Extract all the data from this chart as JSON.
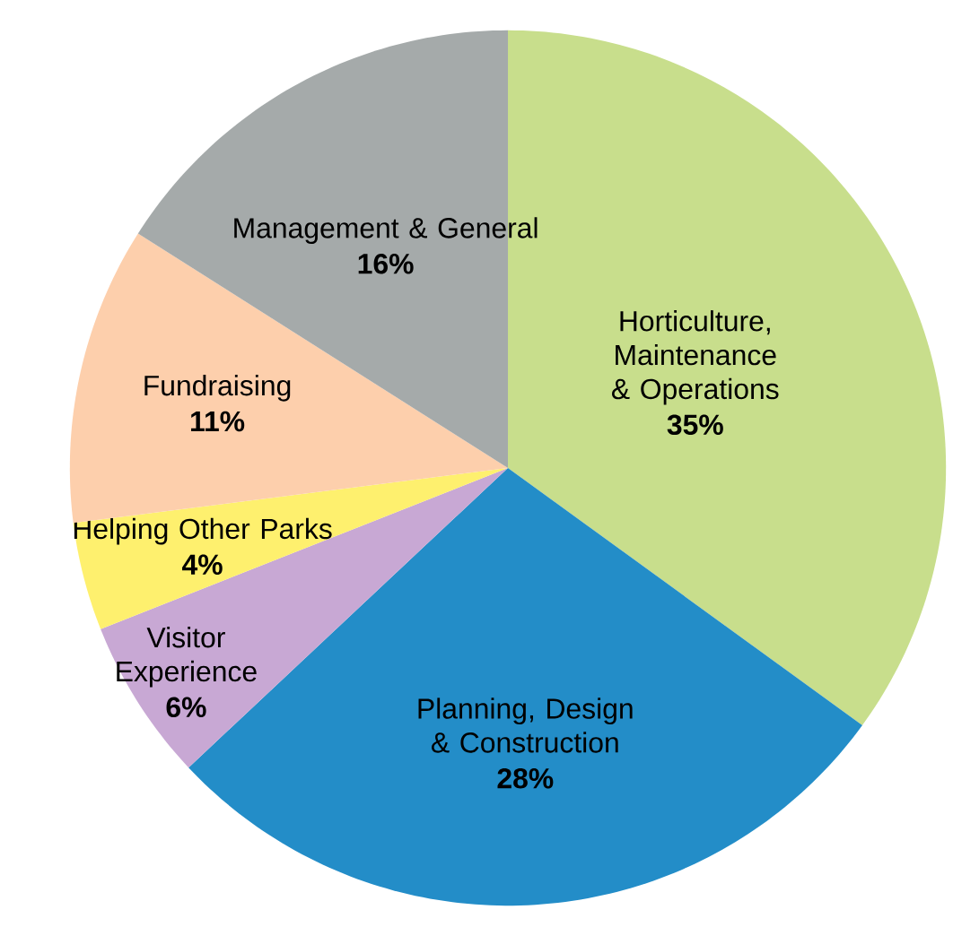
{
  "chart_data": {
    "type": "pie",
    "categories": [
      "Horticulture, Maintenance & Operations",
      "Planning, Design & Construction",
      "Visitor Experience",
      "Helping Other Parks",
      "Fundraising",
      "Management & General"
    ],
    "values": [
      35,
      28,
      6,
      4,
      11,
      16
    ],
    "value_labels": [
      "35%",
      "28%",
      "6%",
      "4%",
      "11%",
      "16%"
    ],
    "colors": [
      "#c8de8c",
      "#238dc8",
      "#c8a8d4",
      "#fef06e",
      "#fdcfac",
      "#a5aaaa"
    ]
  }
}
